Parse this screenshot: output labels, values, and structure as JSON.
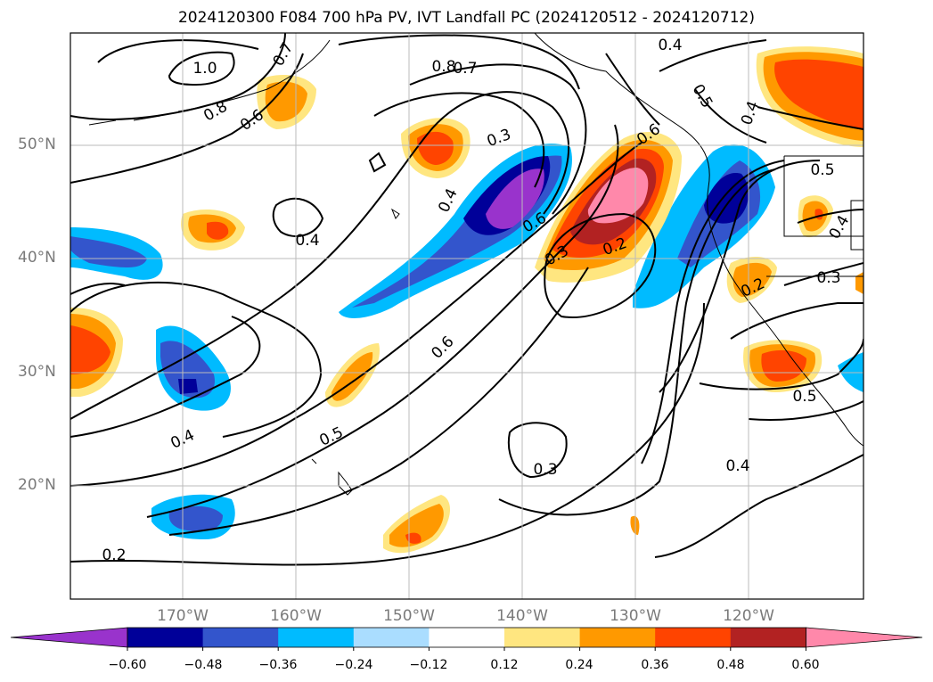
{
  "title": "2024120300 F084 700 hPa PV, IVT Landfall PC (2024120512 - 2024120712)",
  "map": {
    "lat_labels": [
      "50°N",
      "40°N",
      "30°N",
      "20°N"
    ],
    "lon_labels": [
      "170°W",
      "160°W",
      "150°W",
      "140°W",
      "130°W",
      "120°W"
    ],
    "contour_labels": [
      "1.0",
      "0.8",
      "0.6",
      "0.7",
      "0.8",
      "0.7",
      "0.4",
      "0.5",
      "0.4",
      "0.3",
      "0.4",
      "0.6",
      "0.6",
      "0.3",
      "0.2",
      "0.5",
      "0.6",
      "0.4",
      "0.5",
      "0.4",
      "0.3",
      "0.2",
      "0.5",
      "0.4",
      "0.3",
      "0.4",
      "0.2"
    ],
    "colors": {
      "purple": "#9933cc",
      "navy": "#000099",
      "blue": "#3355cc",
      "cyan": "#00bbff",
      "lightblue": "#aaddff",
      "yellow": "#ffe680",
      "orange": "#ff9900",
      "redorange": "#ff4400",
      "darkred": "#b22222",
      "pink": "#ff88aa"
    }
  },
  "colorbar": {
    "ticks": [
      "−0.60",
      "−0.48",
      "−0.36",
      "−0.24",
      "−0.12",
      "0.12",
      "0.24",
      "0.36",
      "0.48",
      "0.60"
    ],
    "colors": [
      "#9933cc",
      "#000099",
      "#3355cc",
      "#00bbff",
      "#aaddff",
      "#ffffff",
      "#ffe680",
      "#ff9900",
      "#ff4400",
      "#b22222",
      "#ff88aa"
    ]
  }
}
